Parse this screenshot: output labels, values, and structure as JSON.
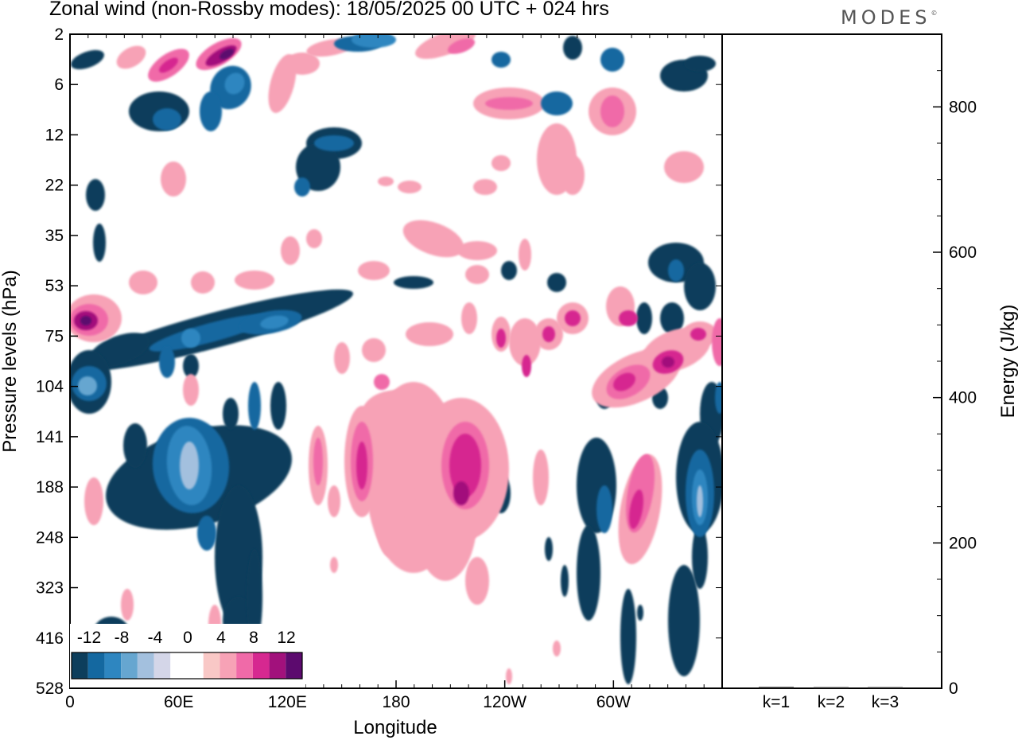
{
  "title": "Zonal wind (non-Rossby modes):  18/05/2025  00 UTC  + 024 hrs",
  "logo": "MODES",
  "logo_mark": "©",
  "colors": {
    "negative": [
      "#0d3e5c",
      "#1468a0",
      "#2e86c0",
      "#66a6d0",
      "#a3c0de",
      "#d4d6e8"
    ],
    "positive": [
      "#f9c8c6",
      "#f7a2b6",
      "#f06aa8",
      "#d62890",
      "#a2117c",
      "#5c0a6e"
    ],
    "neutral": "#ffffff"
  },
  "chart_data": [
    {
      "type": "heatmap",
      "title": "Zonal wind (non-Rossby modes):  18/05/2025  00 UTC  + 024 hrs",
      "xlabel": "Longitude",
      "ylabel": "Pressure levels (hPa)",
      "x_ticks": [
        "0",
        "60E",
        "120E",
        "180",
        "120W",
        "60W"
      ],
      "x_tick_degrees": [
        0,
        60,
        120,
        180,
        240,
        300
      ],
      "xlim": [
        0,
        360
      ],
      "y_ticks": [
        "2",
        "6",
        "12",
        "22",
        "35",
        "53",
        "75",
        "104",
        "141",
        "188",
        "248",
        "323",
        "416",
        "528"
      ],
      "colorbar": {
        "labels": [
          "-12",
          "-8",
          "-4",
          "0",
          "4",
          "8",
          "12"
        ],
        "levels": [
          -14,
          -12,
          -10,
          -8,
          -6,
          -4,
          -2,
          2,
          4,
          6,
          8,
          10,
          12,
          14
        ]
      },
      "features": [
        {
          "lon": 88,
          "level": "2-6",
          "value": 13
        },
        {
          "lon": 55,
          "level": "2-6",
          "value": 8
        },
        {
          "lon": 7,
          "level": "75",
          "value": 14
        },
        {
          "lon": 5,
          "level": "104",
          "value": -8
        },
        {
          "lon": 66,
          "level": "141-188",
          "value": -11
        },
        {
          "lon": 160,
          "level": "141-188",
          "value": 8
        },
        {
          "lon": 220,
          "level": "141-188",
          "value": 9
        },
        {
          "lon": 330,
          "level": "141-188",
          "value": -9
        },
        {
          "lon": 303,
          "level": "188-248",
          "value": 6
        },
        {
          "lon": 330,
          "level": "75-104",
          "value": 8
        },
        {
          "lon": 110,
          "level": "75",
          "value": -6
        },
        {
          "lon": 90,
          "level": "6",
          "value": -7
        },
        {
          "lon": 240,
          "level": "12",
          "value": 5
        }
      ]
    },
    {
      "type": "bar",
      "ylabel": "Energy (J/kg)",
      "categories": [
        "k=1",
        "k=2",
        "k=3"
      ],
      "values": [
        2,
        1,
        0.5
      ],
      "ylim": [
        0,
        900
      ],
      "y_ticks": [
        "0",
        "200",
        "400",
        "600",
        "800"
      ]
    }
  ]
}
